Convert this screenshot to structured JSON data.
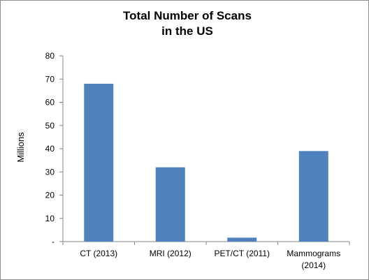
{
  "chart_data": {
    "type": "bar",
    "title": [
      "Total Number of Scans",
      "in the US"
    ],
    "ylabel": "Millions",
    "xlabel": "",
    "categories": [
      [
        "CT (2013)"
      ],
      [
        "MRI (2012)"
      ],
      [
        "PET/CT (2011)"
      ],
      [
        "Mammograms",
        "(2014)"
      ]
    ],
    "values": [
      68,
      32,
      1.7,
      39
    ],
    "ylim": [
      0,
      80
    ],
    "yticks": [
      {
        "value": 0,
        "label": "-"
      },
      {
        "value": 10,
        "label": "10"
      },
      {
        "value": 20,
        "label": "20"
      },
      {
        "value": 30,
        "label": "30"
      },
      {
        "value": 40,
        "label": "40"
      },
      {
        "value": 50,
        "label": "50"
      },
      {
        "value": 60,
        "label": "60"
      },
      {
        "value": 70,
        "label": "70"
      },
      {
        "value": 80,
        "label": "80"
      }
    ],
    "grid": false,
    "legend": "none",
    "bar_color": "#4f81bd"
  }
}
